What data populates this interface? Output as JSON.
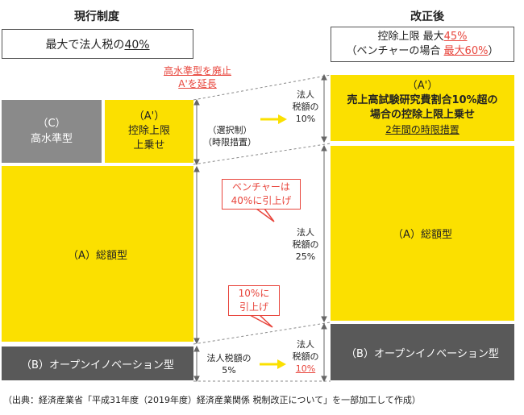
{
  "headers": {
    "current": "現行制度",
    "revised": "改正後"
  },
  "current_limit": {
    "text1": "最大で法人税の",
    "highlight": "40%"
  },
  "revised_limit": {
    "line1_text": "控除上限 最大",
    "line1_red": "45%",
    "line2_text": "（ベンチャーの場合",
    "line2_red": "最大60%",
    "line2_end": "）"
  },
  "red_note": {
    "line1": "高水準型を廃止",
    "line2": "A'を延長"
  },
  "boxes": {
    "c_label": "（C）",
    "c_name": "高水準型",
    "a2_label": "（A'）",
    "a2_line1": "控除上限",
    "a2_line2": "上乗せ",
    "a_total": "（A）総額型",
    "b_open": "（B）オープンイノベーション型",
    "r_a2_label": "（A'）",
    "r_a2_line1": "売上高試験研究費割合10%超の",
    "r_a2_line2": "場合の控除上限上乗せ",
    "r_a2_note": "2年間の時限措置",
    "r_a_total": "（A）総額型",
    "r_b_open": "（B）オープンイノベーション型"
  },
  "middle": {
    "selective_1": "（選択制）",
    "selective_2": "（時限措置）",
    "tax10_1": "法人",
    "tax10_2": "税額の",
    "tax10_3": "10%",
    "tax25_1": "法人",
    "tax25_2": "税額の",
    "tax25_3": "25%",
    "tax5_1": "法人税額の",
    "tax5_2": "5%",
    "taxb_1": "法人",
    "taxb_2": "税額の",
    "taxb_3": "10%"
  },
  "callouts": {
    "venture_1": "ベンチャーは",
    "venture_2": "40%に引上げ",
    "raise_1": "10%に",
    "raise_2": "引上げ"
  },
  "footer": "（出典：経済産業省「平成31年度（2019年度）経済産業関係 税制改正について」を一部加工して作成）"
}
